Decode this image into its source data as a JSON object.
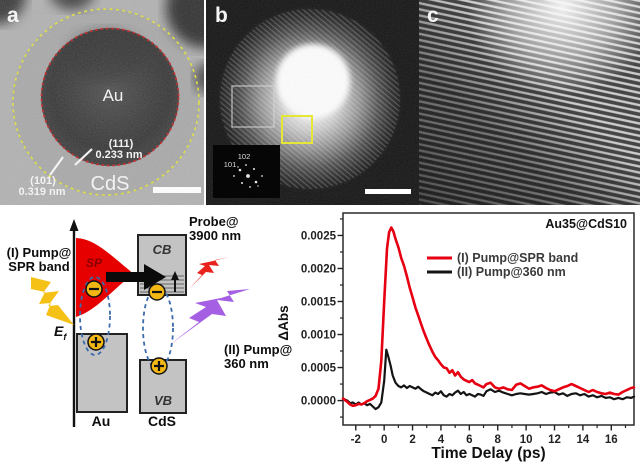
{
  "figure": {
    "panels": {
      "a": {
        "label": "a",
        "core": "Au",
        "shell": "CdS",
        "plane1": "(111)",
        "d1": "0.233 nm",
        "plane2": "(101)",
        "d2": "0.319 nm"
      },
      "b": {
        "label": "b",
        "fft1": "102",
        "fft2": "101"
      },
      "c": {
        "label": "c"
      }
    },
    "diagram": {
      "pump1_l1": "(I) Pump@",
      "pump1_l2": "SPR band",
      "probe_l1": "Probe@",
      "probe_l2": "3900 nm",
      "pump2_l1": "(II) Pump@",
      "pump2_l2": "360 nm",
      "sp": "SP",
      "cb": "CB",
      "vb": "VB",
      "au": "Au",
      "cds": "CdS",
      "ef_base": "E",
      "ef_sub": "f",
      "colors": {
        "sp_fill": "#e60000",
        "bolt_yellow": "#f6c117",
        "bolt_purple": "#a55fe3",
        "bolt_red": "#e8231d",
        "carrier": "#f2b713",
        "dashed": "#3a6aaa",
        "box": "#c3c3c3"
      }
    },
    "chart_data": {
      "type": "line",
      "title": "Au35@CdS10",
      "xlabel": "Time Delay (ps)",
      "ylabel": "ΔAbs",
      "xlim": [
        -2.9,
        17.6
      ],
      "ylim": [
        -0.00037,
        0.00284
      ],
      "x_ticks": [
        -2,
        0,
        2,
        4,
        6,
        8,
        10,
        12,
        14,
        16
      ],
      "y_ticks": [
        0,
        0.0005,
        0.001,
        0.0015,
        0.002,
        0.0025
      ],
      "grid": false,
      "legend_position": "inside upper-middle",
      "series": [
        {
          "name": "(I) Pump@SPR band",
          "color": "#e60011",
          "stroke_width": 2.6,
          "points": [
            [
              -2.9,
              3e-05
            ],
            [
              -2.6,
              -2e-05
            ],
            [
              -2.4,
              -6e-05
            ],
            [
              -2.2,
              -8e-05
            ],
            [
              -2.0,
              -7e-05
            ],
            [
              -1.8,
              -5e-05
            ],
            [
              -1.6,
              -6e-05
            ],
            [
              -1.4,
              -4e-05
            ],
            [
              -1.2,
              -1e-05
            ],
            [
              -1.0,
              1e-05
            ],
            [
              -0.8,
              3e-05
            ],
            [
              -0.6,
              7e-05
            ],
            [
              -0.4,
              0.00018
            ],
            [
              -0.2,
              0.0006
            ],
            [
              0,
              0.0015
            ],
            [
              0.2,
              0.0023
            ],
            [
              0.35,
              0.00255
            ],
            [
              0.5,
              0.00262
            ],
            [
              0.65,
              0.00256
            ],
            [
              0.8,
              0.00245
            ],
            [
              1.0,
              0.00232
            ],
            [
              1.2,
              0.00216
            ],
            [
              1.4,
              0.00204
            ],
            [
              1.6,
              0.00188
            ],
            [
              1.8,
              0.00171
            ],
            [
              2.0,
              0.00156
            ],
            [
              2.2,
              0.00141
            ],
            [
              2.4,
              0.00129
            ],
            [
              2.6,
              0.00116
            ],
            [
              2.8,
              0.00104
            ],
            [
              3.0,
              0.00093
            ],
            [
              3.2,
              0.00083
            ],
            [
              3.4,
              0.00074
            ],
            [
              3.6,
              0.00066
            ],
            [
              3.8,
              0.00061
            ],
            [
              4.0,
              0.00055
            ],
            [
              4.2,
              0.0005
            ],
            [
              4.4,
              0.00049
            ],
            [
              4.6,
              0.00042
            ],
            [
              4.8,
              0.00046
            ],
            [
              5.0,
              0.00038
            ],
            [
              5.2,
              0.00043
            ],
            [
              5.4,
              0.00036
            ],
            [
              5.6,
              0.00032
            ],
            [
              5.8,
              0.0003
            ],
            [
              6.0,
              0.00028
            ],
            [
              6.2,
              0.00031
            ],
            [
              6.4,
              0.00026
            ],
            [
              6.6,
              0.00024
            ],
            [
              6.8,
              0.00022
            ],
            [
              7.0,
              0.0002
            ],
            [
              7.2,
              0.00025
            ],
            [
              7.5,
              0.00027
            ],
            [
              7.8,
              0.0002
            ],
            [
              8.1,
              0.00018
            ],
            [
              8.4,
              0.0002
            ],
            [
              8.7,
              0.00017
            ],
            [
              9.0,
              0.00016
            ],
            [
              9.3,
              0.00024
            ],
            [
              9.6,
              0.00026
            ],
            [
              9.9,
              0.00022
            ],
            [
              10.2,
              0.00018
            ],
            [
              10.5,
              0.0002
            ],
            [
              10.8,
              0.00021
            ],
            [
              11.1,
              0.00023
            ],
            [
              11.4,
              0.00019
            ],
            [
              11.7,
              0.00016
            ],
            [
              12.0,
              0.00014
            ],
            [
              12.3,
              0.00017
            ],
            [
              12.6,
              0.0002
            ],
            [
              12.9,
              0.00022
            ],
            [
              13.2,
              0.00025
            ],
            [
              13.5,
              0.00022
            ],
            [
              13.8,
              0.00019
            ],
            [
              14.1,
              0.00016
            ],
            [
              14.4,
              0.00013
            ],
            [
              14.7,
              0.00016
            ],
            [
              15.0,
              0.00013
            ],
            [
              15.3,
              0.00011
            ],
            [
              15.6,
              0.0001
            ],
            [
              15.9,
              0.00012
            ],
            [
              16.2,
              0.0001
            ],
            [
              16.5,
              9e-05
            ],
            [
              16.8,
              0.00013
            ],
            [
              17.1,
              0.00016
            ],
            [
              17.4,
              0.00019
            ],
            [
              17.6,
              0.0002
            ]
          ]
        },
        {
          "name": "(II) Pump@360 nm",
          "color": "#141414",
          "stroke_width": 2.2,
          "points": [
            [
              -2.9,
              3e-05
            ],
            [
              -2.6,
              0
            ],
            [
              -2.4,
              -4e-05
            ],
            [
              -2.2,
              -3e-05
            ],
            [
              -2.0,
              -6e-05
            ],
            [
              -1.8,
              -3e-05
            ],
            [
              -1.6,
              -6e-05
            ],
            [
              -1.4,
              -4e-05
            ],
            [
              -1.2,
              -7e-05
            ],
            [
              -1.0,
              -5e-05
            ],
            [
              -0.8,
              -9e-05
            ],
            [
              -0.6,
              -0.00013
            ],
            [
              -0.4,
              -0.0001
            ],
            [
              -0.2,
              -3e-05
            ],
            [
              0,
              0.0003
            ],
            [
              0.15,
              0.00077
            ],
            [
              0.3,
              0.00066
            ],
            [
              0.45,
              0.00053
            ],
            [
              0.6,
              0.00038
            ],
            [
              0.8,
              0.00027
            ],
            [
              1.0,
              0.00022
            ],
            [
              1.2,
              0.0002
            ],
            [
              1.4,
              0.00023
            ],
            [
              1.6,
              0.00019
            ],
            [
              1.8,
              0.00022
            ],
            [
              2.0,
              0.0002
            ],
            [
              2.2,
              0.00018
            ],
            [
              2.4,
              0.00021
            ],
            [
              2.6,
              0.00017
            ],
            [
              2.8,
              0.00014
            ],
            [
              3.0,
              0.00012
            ],
            [
              3.2,
              0.0001
            ],
            [
              3.4,
              8e-05
            ],
            [
              3.6,
              0.00012
            ],
            [
              3.8,
              0.0001
            ],
            [
              4.0,
              0.00014
            ],
            [
              4.2,
              8e-05
            ],
            [
              4.4,
              6e-05
            ],
            [
              4.6,
              0.0001
            ],
            [
              4.8,
              8e-05
            ],
            [
              5.0,
              0.00012
            ],
            [
              5.2,
              0.00015
            ],
            [
              5.4,
              0.0001
            ],
            [
              5.6,
              0.00013
            ],
            [
              5.8,
              8e-05
            ],
            [
              6.0,
              0.0001
            ],
            [
              6.2,
              8e-05
            ],
            [
              6.4,
              6e-05
            ],
            [
              6.6,
              0.0001
            ],
            [
              6.8,
              9e-05
            ],
            [
              7.0,
              7e-05
            ],
            [
              7.2,
              0.00014
            ],
            [
              7.5,
              0.00017
            ],
            [
              7.8,
              0.00013
            ],
            [
              8.1,
              0.00015
            ],
            [
              8.4,
              0.00012
            ],
            [
              8.7,
              0.0001
            ],
            [
              9.0,
              8e-05
            ],
            [
              9.3,
              0.0001
            ],
            [
              9.6,
              0.00011
            ],
            [
              9.9,
              0.0001
            ],
            [
              10.2,
              9e-05
            ],
            [
              10.5,
              0.0001
            ],
            [
              10.8,
              0.00011
            ],
            [
              11.1,
              0.00013
            ],
            [
              11.4,
              0.0001
            ],
            [
              11.7,
              0.00012
            ],
            [
              12.0,
              0.00013
            ],
            [
              12.3,
              9e-05
            ],
            [
              12.6,
              0.00011
            ],
            [
              12.9,
              7e-05
            ],
            [
              13.2,
              0.0001
            ],
            [
              13.5,
              0.00011
            ],
            [
              13.8,
              8e-05
            ],
            [
              14.1,
              0.0001
            ],
            [
              14.4,
              6e-05
            ],
            [
              14.7,
              8e-05
            ],
            [
              15.0,
              5e-05
            ],
            [
              15.3,
              7e-05
            ],
            [
              15.6,
              4e-05
            ],
            [
              15.9,
              5e-05
            ],
            [
              16.2,
              2e-05
            ],
            [
              16.5,
              4e-05
            ],
            [
              16.8,
              2e-05
            ],
            [
              17.1,
              5e-05
            ],
            [
              17.4,
              4e-05
            ],
            [
              17.6,
              6e-05
            ]
          ]
        }
      ]
    }
  }
}
